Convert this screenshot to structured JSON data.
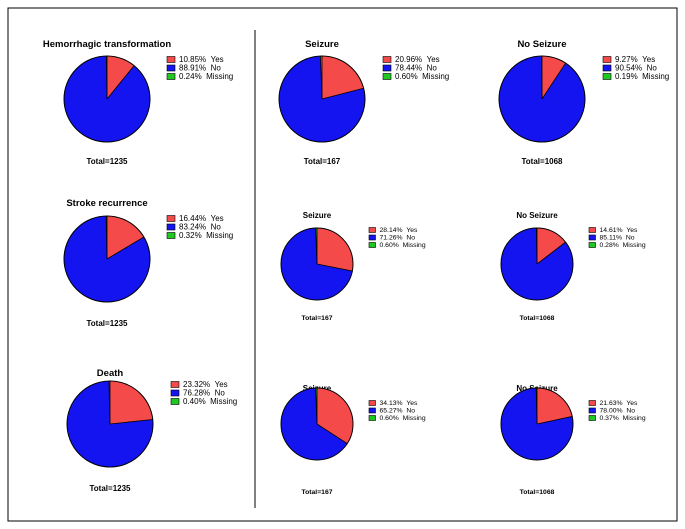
{
  "colors": {
    "yes": "#f54a4a",
    "no": "#1414f0",
    "missing": "#1ec81e",
    "outline": "#000000",
    "frame": "#000000"
  },
  "legend_order": [
    "Yes",
    "No",
    "Missing"
  ],
  "chart_data": [
    {
      "type": "pie",
      "title": "Hemorrhagic transformation",
      "total_label": "Total=1235",
      "slices": [
        {
          "label": "Yes",
          "value": 10.85,
          "text": "10.85%"
        },
        {
          "label": "No",
          "value": 88.91,
          "text": "88.91%"
        },
        {
          "label": "Missing",
          "value": 0.24,
          "text": "0.24%"
        }
      ]
    },
    {
      "type": "pie",
      "title": "Seizure",
      "total_label": "Total=167",
      "slices": [
        {
          "label": "Yes",
          "value": 20.96,
          "text": "20.96%"
        },
        {
          "label": "No",
          "value": 78.44,
          "text": "78.44%"
        },
        {
          "label": "Missing",
          "value": 0.6,
          "text": "0.60%"
        }
      ]
    },
    {
      "type": "pie",
      "title": "No Seizure",
      "total_label": "Total=1068",
      "slices": [
        {
          "label": "Yes",
          "value": 9.27,
          "text": "9.27%"
        },
        {
          "label": "No",
          "value": 90.54,
          "text": "90.54%"
        },
        {
          "label": "Missing",
          "value": 0.19,
          "text": "0.19%"
        }
      ]
    },
    {
      "type": "pie",
      "title": "Stroke recurrence",
      "total_label": "Total=1235",
      "slices": [
        {
          "label": "Yes",
          "value": 16.44,
          "text": "16.44%"
        },
        {
          "label": "No",
          "value": 83.24,
          "text": "83.24%"
        },
        {
          "label": "Missing",
          "value": 0.32,
          "text": "0.32%"
        }
      ]
    },
    {
      "type": "pie",
      "title": "Seizure",
      "total_label": "Total=167",
      "slices": [
        {
          "label": "Yes",
          "value": 28.14,
          "text": "28.14%"
        },
        {
          "label": "No",
          "value": 71.26,
          "text": "71.26%"
        },
        {
          "label": "Missing",
          "value": 0.6,
          "text": "0.60%"
        }
      ]
    },
    {
      "type": "pie",
      "title": "No Seizure",
      "total_label": "Total=1068",
      "slices": [
        {
          "label": "Yes",
          "value": 14.61,
          "text": "14.61%"
        },
        {
          "label": "No",
          "value": 85.11,
          "text": "85.11%"
        },
        {
          "label": "Missing",
          "value": 0.28,
          "text": "0.28%"
        }
      ]
    },
    {
      "type": "pie",
      "title": "Death",
      "total_label": "Total=1235",
      "slices": [
        {
          "label": "Yes",
          "value": 23.32,
          "text": "23.32%"
        },
        {
          "label": "No",
          "value": 76.28,
          "text": "76.28%"
        },
        {
          "label": "Missing",
          "value": 0.4,
          "text": "0.40%"
        }
      ]
    },
    {
      "type": "pie",
      "title": "Seizure",
      "total_label": "Total=167",
      "slices": [
        {
          "label": "Yes",
          "value": 34.13,
          "text": "34.13%"
        },
        {
          "label": "No",
          "value": 65.27,
          "text": "65.27%"
        },
        {
          "label": "Missing",
          "value": 0.6,
          "text": "0.60%"
        }
      ]
    },
    {
      "type": "pie",
      "title": "No Seizure",
      "total_label": "Total=1068",
      "slices": [
        {
          "label": "Yes",
          "value": 21.63,
          "text": "21.63%"
        },
        {
          "label": "No",
          "value": 78.0,
          "text": "78.00%"
        },
        {
          "label": "Missing",
          "value": 0.37,
          "text": "0.37%"
        }
      ]
    }
  ]
}
